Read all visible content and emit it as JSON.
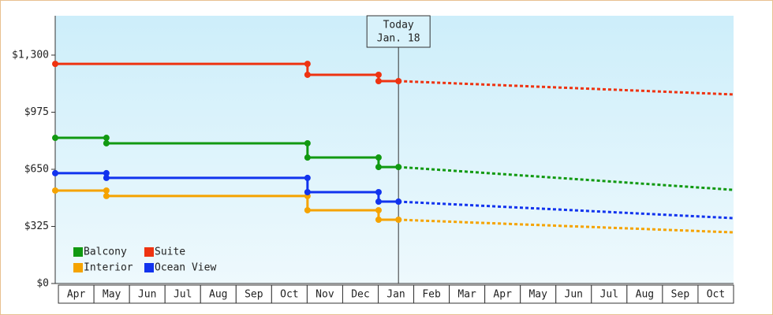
{
  "chart_data": {
    "type": "line",
    "categories": [
      "Apr",
      "May",
      "Jun",
      "Jul",
      "Aug",
      "Sep",
      "Oct",
      "Nov",
      "Dec",
      "Jan",
      "Feb",
      "Mar",
      "Apr",
      "May",
      "Jun",
      "Jul",
      "Aug",
      "Sep",
      "Oct"
    ],
    "xlim": [
      -0.09,
      19
    ],
    "ylim": [
      0,
      1524
    ],
    "yticks": [
      {
        "value": 0,
        "label": "$0"
      },
      {
        "value": 325,
        "label": "$325"
      },
      {
        "value": 650,
        "label": "$650"
      },
      {
        "value": 975,
        "label": "$975"
      },
      {
        "value": 1300,
        "label": "$1,300"
      }
    ],
    "today": {
      "label": [
        "Today",
        "Jan. 18"
      ],
      "x": 9.57
    },
    "series": [
      {
        "name": "Balcony",
        "color": "#119911",
        "x": [
          -0.09,
          1.35,
          1.35,
          7.01,
          7.01,
          9.01,
          9.01,
          9.57
        ],
        "values": [
          829,
          829,
          798,
          798,
          717,
          717,
          663,
          663
        ],
        "forecast_x": [
          9.57,
          19
        ],
        "forecast_values": [
          663,
          533
        ]
      },
      {
        "name": "Suite",
        "color": "#ee3311",
        "x": [
          -0.09,
          7.01,
          7.01,
          9.01,
          9.01,
          9.57
        ],
        "values": [
          1250,
          1250,
          1188,
          1188,
          1152,
          1152
        ],
        "forecast_x": [
          9.57,
          19
        ],
        "forecast_values": [
          1152,
          1076
        ]
      },
      {
        "name": "Interior",
        "color": "#f5a300",
        "x": [
          -0.09,
          1.35,
          1.35,
          7.01,
          7.01,
          9.01,
          9.01,
          9.57
        ],
        "values": [
          529,
          529,
          498,
          498,
          417,
          417,
          363,
          363
        ],
        "forecast_x": [
          9.57,
          19
        ],
        "forecast_values": [
          363,
          291
        ]
      },
      {
        "name": "Ocean View",
        "color": "#1133ee",
        "x": [
          -0.09,
          1.35,
          1.35,
          7.01,
          7.01,
          9.01,
          9.01,
          9.57
        ],
        "values": [
          628,
          628,
          601,
          601,
          520,
          520,
          466,
          466
        ],
        "forecast_x": [
          9.57,
          19
        ],
        "forecast_values": [
          466,
          372
        ]
      }
    ]
  }
}
